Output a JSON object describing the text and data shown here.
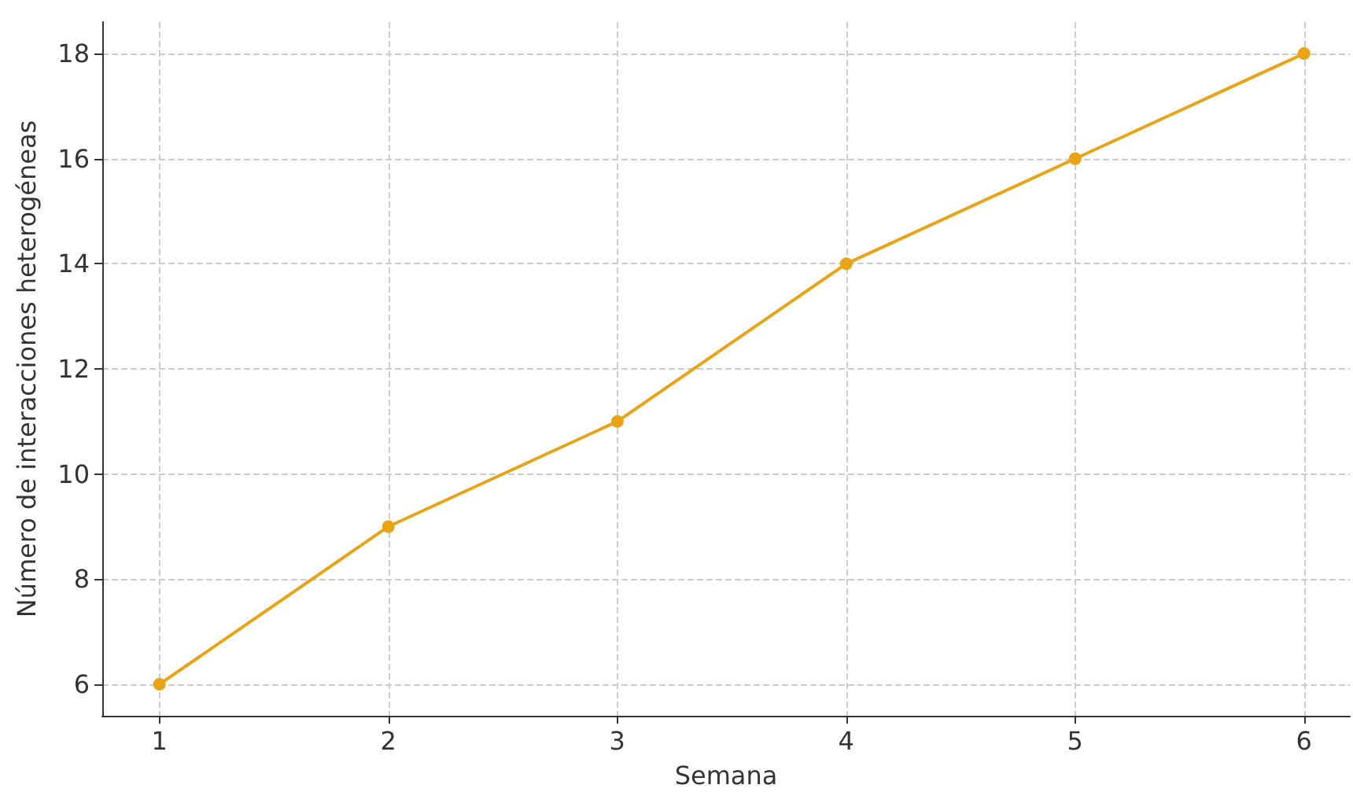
{
  "chart_data": {
    "type": "line",
    "xlabel": "Semana",
    "ylabel": "Número de interacciones heterogéneas",
    "x": [
      1,
      2,
      3,
      4,
      5,
      6
    ],
    "series": [
      {
        "color": "#e8a317",
        "values": [
          6,
          9,
          11,
          14,
          16,
          18
        ]
      }
    ],
    "xlim": [
      0.75,
      6.2
    ],
    "xticks": [
      1,
      2,
      3,
      4,
      5,
      6
    ],
    "ylim": [
      5.4,
      18.6
    ],
    "yticks": [
      6,
      8,
      10,
      12,
      14,
      16,
      18
    ],
    "grid": true,
    "marker": "circle",
    "line_style": "solid"
  }
}
